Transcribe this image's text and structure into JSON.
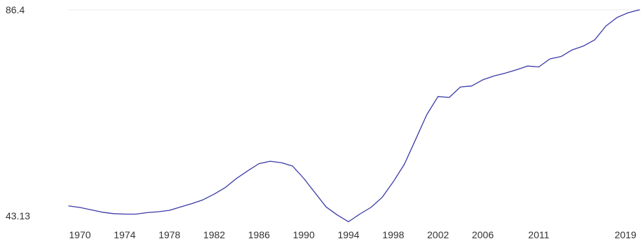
{
  "chart_data": {
    "type": "line",
    "title": "",
    "xlabel": "",
    "ylabel": "",
    "grid": "top-line-only",
    "ylim": [
      43.13,
      86.4
    ],
    "y_tick_labels": [
      "86.4",
      "43.13"
    ],
    "x_tick_labels": [
      1970,
      1974,
      1978,
      1982,
      1986,
      1990,
      1994,
      1998,
      2002,
      2006,
      2011,
      2019
    ],
    "colors": {
      "line": "#3a3aa8",
      "grid": "#e9e9e9",
      "text": "#333333"
    },
    "series": [
      {
        "x": [
          1969,
          1970,
          1971,
          1972,
          1973,
          1974,
          1975,
          1976,
          1977,
          1978,
          1979,
          1980,
          1981,
          1982,
          1983,
          1984,
          1985,
          1986,
          1987,
          1988,
          1989,
          1990,
          1991,
          1992,
          1993,
          1994,
          1995,
          1996,
          1997,
          1998,
          1999,
          2000,
          2001,
          2002,
          2003,
          2004,
          2005,
          2006,
          2007,
          2008,
          2009,
          2010,
          2011,
          2012,
          2013,
          2014,
          2015,
          2016,
          2017,
          2018,
          2019,
          2020
        ],
        "values": [
          45.2,
          44.9,
          44.4,
          43.9,
          43.6,
          43.5,
          43.5,
          43.8,
          44.0,
          44.3,
          45.0,
          45.7,
          46.5,
          47.7,
          49.1,
          51.0,
          52.6,
          54.1,
          54.6,
          54.3,
          53.6,
          51.0,
          48.0,
          45.0,
          43.3,
          41.9,
          43.5,
          44.9,
          47.0,
          50.3,
          54.0,
          59.2,
          64.4,
          68.2,
          68.0,
          70.2,
          70.4,
          71.7,
          72.5,
          73.1,
          73.8,
          74.6,
          74.4,
          76.1,
          76.6,
          78.0,
          78.8,
          80.1,
          83.0,
          84.8,
          85.8,
          86.4
        ]
      }
    ]
  }
}
